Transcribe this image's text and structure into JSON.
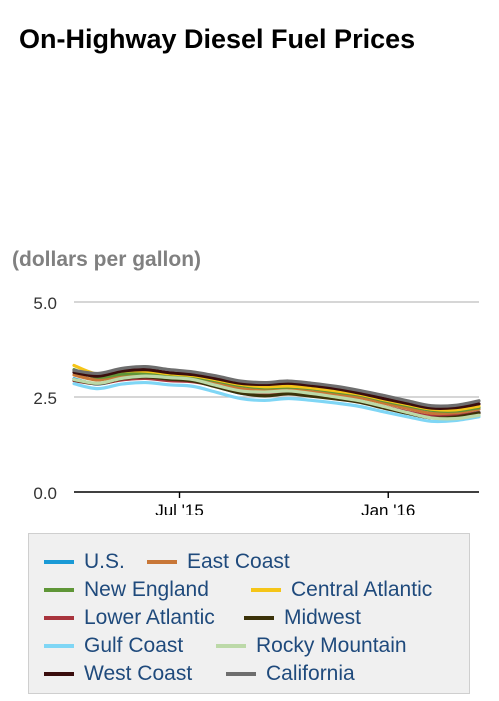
{
  "title": "On-Highway Diesel Fuel Prices",
  "units_label": "(dollars per gallon)",
  "chart_data": {
    "type": "line",
    "title": "On-Highway Diesel Fuel Prices",
    "ylabel": "(dollars per gallon)",
    "ylim": [
      0,
      5
    ],
    "yticks": [
      {
        "value": 0,
        "label": "0.0"
      },
      {
        "value": 2.5,
        "label": "2.5"
      },
      {
        "value": 5,
        "label": "5.0"
      }
    ],
    "xticks": [
      {
        "value": "2015-07-01",
        "label": "Jul '15"
      },
      {
        "value": "2016-01-01",
        "label": "Jan '16"
      }
    ],
    "xlim": [
      "2015-03-30",
      "2016-03-21"
    ],
    "grid": true,
    "legend_position": "bottom",
    "x": [
      "2015-03-30",
      "2015-04-20",
      "2015-05-11",
      "2015-06-01",
      "2015-06-22",
      "2015-07-13",
      "2015-08-03",
      "2015-08-24",
      "2015-09-14",
      "2015-10-05",
      "2015-10-26",
      "2015-11-16",
      "2015-12-07",
      "2015-12-28",
      "2016-01-18",
      "2016-02-08",
      "2016-02-29",
      "2016-03-21"
    ],
    "series": [
      {
        "name": "U.S.",
        "color": "#1a9ad6",
        "values": [
          2.98,
          2.84,
          2.97,
          3.02,
          2.96,
          2.92,
          2.77,
          2.6,
          2.56,
          2.6,
          2.54,
          2.48,
          2.39,
          2.24,
          2.1,
          1.98,
          2.0,
          2.1
        ]
      },
      {
        "name": "East Coast",
        "color": "#c87737",
        "values": [
          3.08,
          2.95,
          3.06,
          3.07,
          3.01,
          2.98,
          2.86,
          2.72,
          2.67,
          2.7,
          2.64,
          2.56,
          2.48,
          2.34,
          2.2,
          2.07,
          2.08,
          2.18
        ]
      },
      {
        "name": "New England",
        "color": "#5f9637",
        "values": [
          3.22,
          3.02,
          3.1,
          3.12,
          3.05,
          3.02,
          2.92,
          2.8,
          2.74,
          2.76,
          2.72,
          2.63,
          2.55,
          2.4,
          2.27,
          2.15,
          2.13,
          2.22
        ]
      },
      {
        "name": "Central Atlantic",
        "color": "#f5c518",
        "values": [
          3.33,
          3.1,
          3.18,
          3.18,
          3.11,
          3.06,
          2.95,
          2.83,
          2.77,
          2.79,
          2.74,
          2.66,
          2.57,
          2.43,
          2.3,
          2.18,
          2.16,
          2.26
        ]
      },
      {
        "name": "Lower Atlantic",
        "color": "#a8343d",
        "values": [
          2.93,
          2.85,
          2.95,
          2.99,
          2.93,
          2.9,
          2.78,
          2.63,
          2.57,
          2.61,
          2.55,
          2.48,
          2.39,
          2.25,
          2.11,
          1.99,
          2.0,
          2.09
        ]
      },
      {
        "name": "Midwest",
        "color": "#3b3209",
        "values": [
          2.95,
          2.85,
          2.98,
          3.03,
          2.97,
          2.92,
          2.76,
          2.6,
          2.53,
          2.58,
          2.52,
          2.45,
          2.36,
          2.21,
          2.07,
          1.95,
          1.97,
          2.08
        ]
      },
      {
        "name": "Gulf Coast",
        "color": "#7fd6f5",
        "values": [
          2.85,
          2.72,
          2.84,
          2.88,
          2.82,
          2.78,
          2.62,
          2.46,
          2.41,
          2.46,
          2.41,
          2.34,
          2.25,
          2.11,
          1.98,
          1.86,
          1.88,
          1.98
        ]
      },
      {
        "name": "Rocky Mountain",
        "color": "#bcd9a8",
        "values": [
          2.96,
          2.86,
          2.99,
          3.05,
          3.01,
          2.96,
          2.8,
          2.66,
          2.63,
          2.66,
          2.59,
          2.5,
          2.4,
          2.25,
          2.09,
          1.95,
          1.93,
          2.02
        ]
      },
      {
        "name": "West Coast",
        "color": "#3a0d0d",
        "values": [
          3.15,
          3.05,
          3.18,
          3.22,
          3.14,
          3.09,
          2.98,
          2.86,
          2.83,
          2.86,
          2.8,
          2.72,
          2.6,
          2.46,
          2.33,
          2.21,
          2.22,
          2.32
        ]
      },
      {
        "name": "California",
        "color": "#6e6e6e",
        "values": [
          3.2,
          3.12,
          3.25,
          3.3,
          3.22,
          3.16,
          3.05,
          2.92,
          2.88,
          2.92,
          2.86,
          2.78,
          2.67,
          2.54,
          2.4,
          2.27,
          2.28,
          2.4
        ]
      }
    ]
  }
}
